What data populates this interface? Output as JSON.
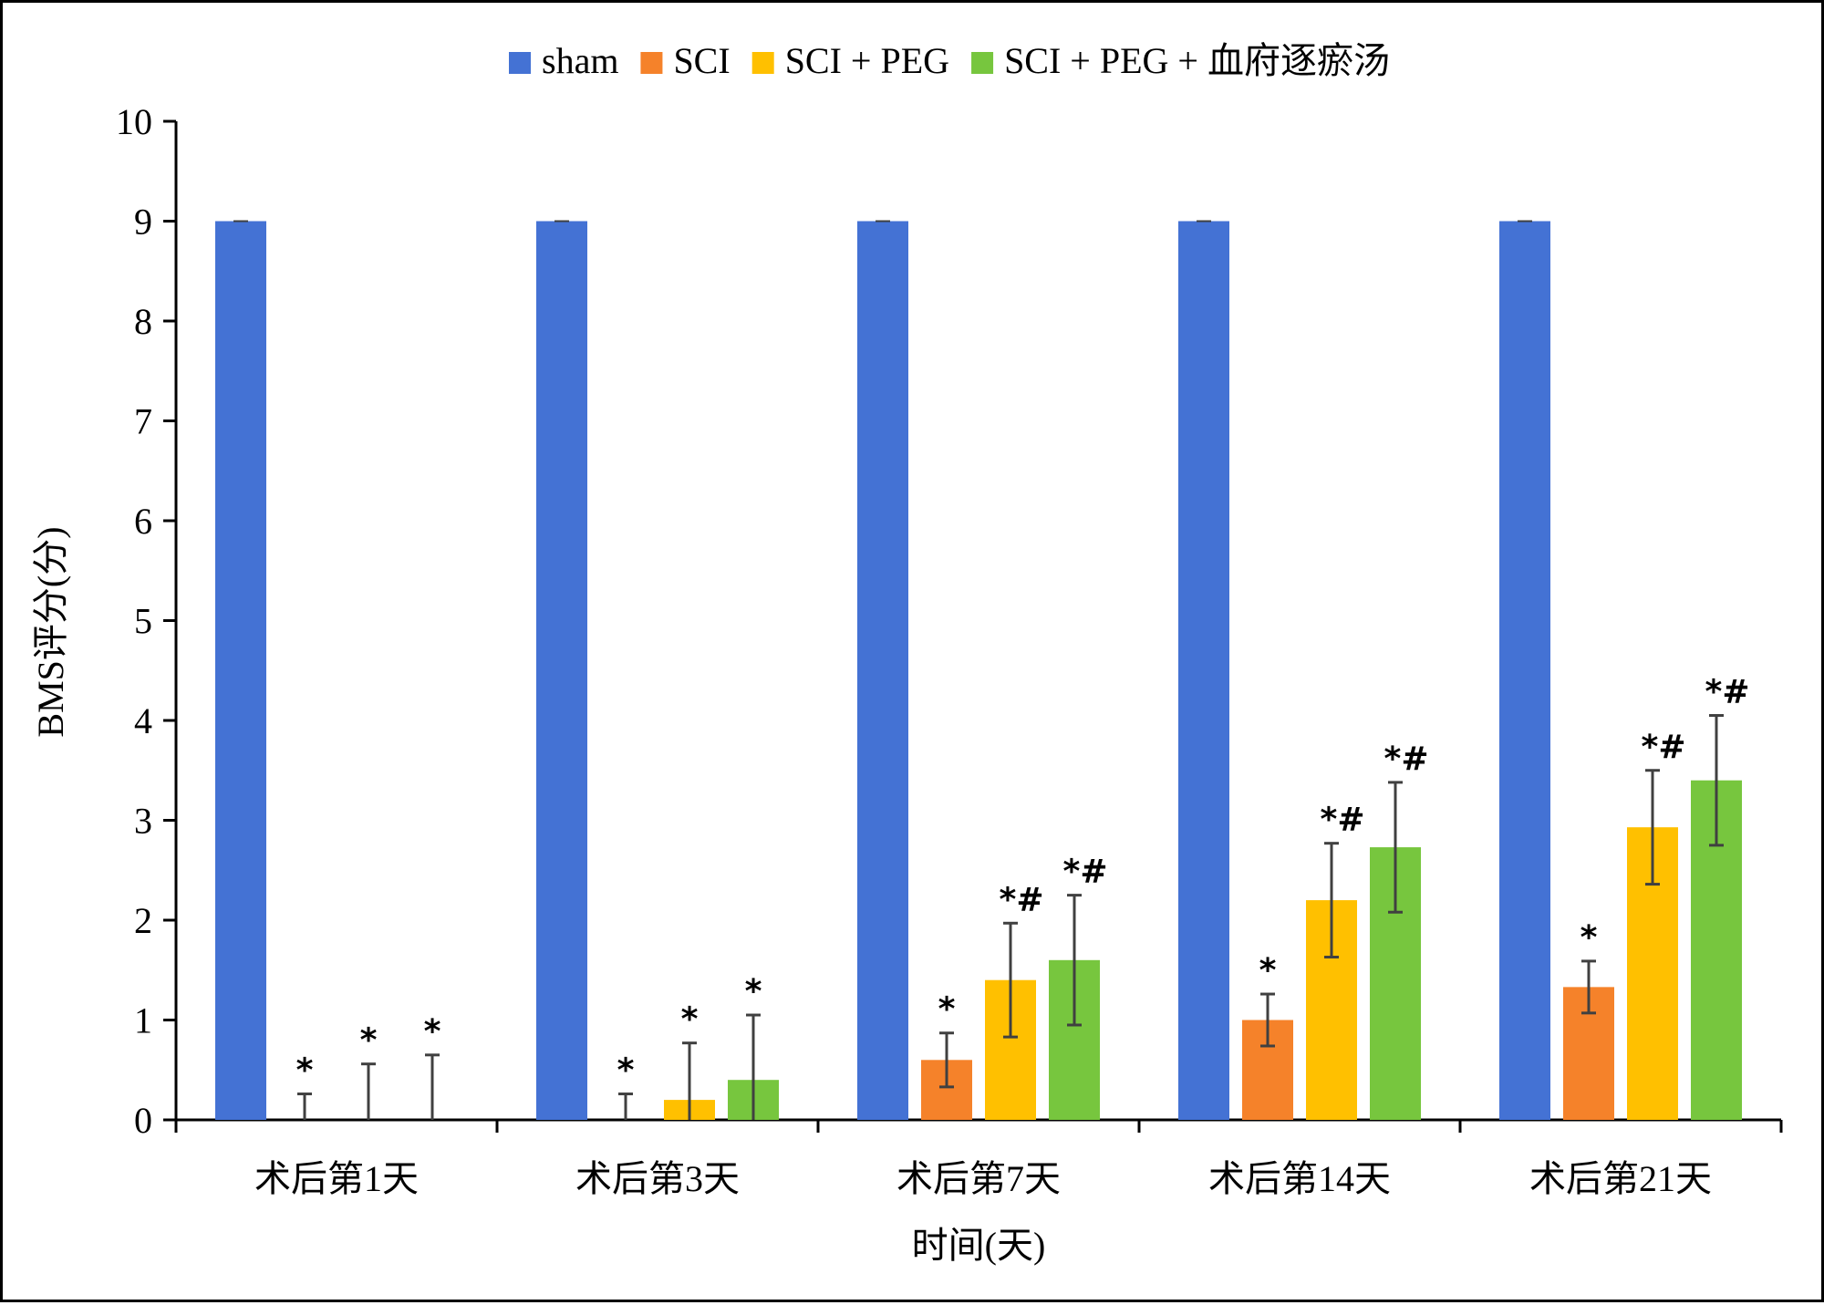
{
  "chart_data": {
    "type": "bar",
    "xlabel": "时间(天)",
    "ylabel": "BMS评分(分)",
    "ylim": [
      0,
      10
    ],
    "yticks": [
      "0",
      "1",
      "2",
      "3",
      "4",
      "5",
      "6",
      "7",
      "8",
      "9",
      "10"
    ],
    "grid": false,
    "legend_position": "top",
    "categories": [
      "术后第1天",
      "术后第3天",
      "术后第7天",
      "术后第14天",
      "术后第21天"
    ],
    "series": [
      {
        "name": "sham",
        "color": "#4472D4",
        "values": [
          9,
          9,
          9,
          9,
          9
        ],
        "errors": [
          0,
          0,
          0,
          0,
          0
        ],
        "annotations": [
          "",
          "",
          "",
          "",
          ""
        ]
      },
      {
        "name": "SCI",
        "color": "#F5822A",
        "values": [
          0,
          0,
          0.6,
          1.0,
          1.33
        ],
        "errors": [
          0.26,
          0.26,
          0.27,
          0.26,
          0.26
        ],
        "annotations": [
          "*",
          "*",
          "*",
          "*",
          "*"
        ]
      },
      {
        "name": "SCI + PEG",
        "color": "#FFC000",
        "values": [
          0,
          0.2,
          1.4,
          2.2,
          2.93
        ],
        "errors": [
          0.56,
          0.57,
          0.57,
          0.57,
          0.57
        ],
        "annotations": [
          "*",
          "*",
          "*#",
          "*#",
          "*#"
        ]
      },
      {
        "name": "SCI + PEG + 血府逐瘀汤",
        "color": "#77C63E",
        "values": [
          0,
          0.4,
          1.6,
          2.73,
          3.4
        ],
        "errors": [
          0.65,
          0.65,
          0.65,
          0.65,
          0.65
        ],
        "annotations": [
          "*",
          "*",
          "*#",
          "*#",
          "*#"
        ]
      }
    ]
  }
}
